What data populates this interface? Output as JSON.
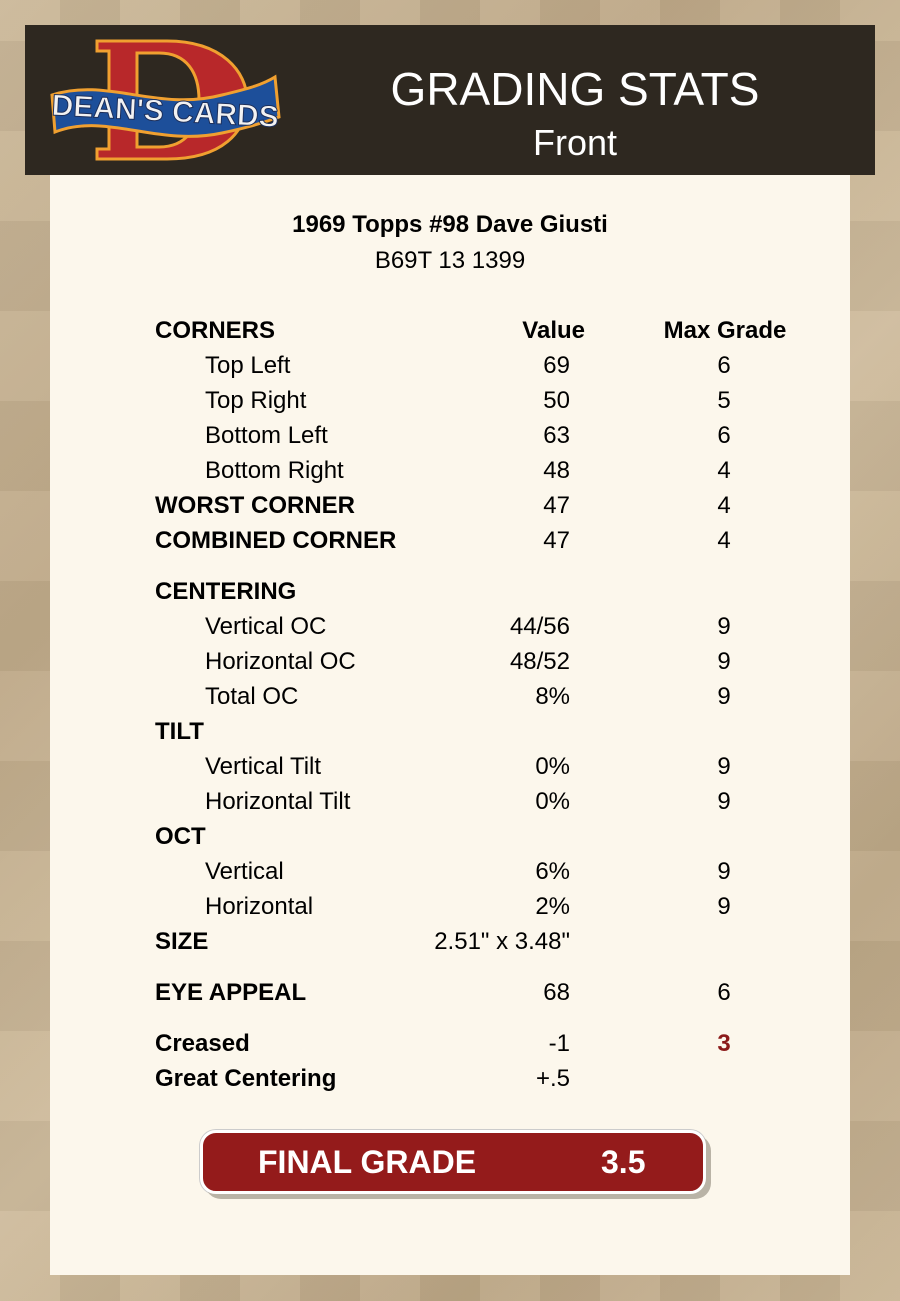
{
  "header": {
    "brand": "DEAN'S CARDS",
    "title": "GRADING STATS",
    "subtitle": "Front"
  },
  "card": {
    "title": "1969 Topps #98 Dave Giusti",
    "code": "B69T 13 1399"
  },
  "columns": {
    "value": "Value",
    "max": "Max Grade"
  },
  "sections": [
    {
      "rows": [
        {
          "label": "CORNERS",
          "type": "bold",
          "value": "",
          "max": ""
        },
        {
          "label": "Top Left",
          "type": "sub",
          "value": "69",
          "max": "6"
        },
        {
          "label": "Top Right",
          "type": "sub",
          "value": "50",
          "max": "5"
        },
        {
          "label": "Bottom Left",
          "type": "sub",
          "value": "63",
          "max": "6"
        },
        {
          "label": "Bottom Right",
          "type": "sub",
          "value": "48",
          "max": "4"
        },
        {
          "label": "WORST CORNER",
          "type": "bold",
          "value": "47",
          "max": "4"
        },
        {
          "label": "COMBINED CORNER",
          "type": "bold",
          "value": "47",
          "max": "4"
        }
      ]
    },
    {
      "rows": [
        {
          "label": "CENTERING",
          "type": "bold",
          "value": "",
          "max": ""
        },
        {
          "label": "Vertical OC",
          "type": "sub",
          "value": "44/56",
          "max": "9"
        },
        {
          "label": "Horizontal OC",
          "type": "sub",
          "value": "48/52",
          "max": "9"
        },
        {
          "label": "Total OC",
          "type": "sub",
          "value": "8%",
          "max": "9"
        },
        {
          "label": "TILT",
          "type": "bold",
          "value": "",
          "max": ""
        },
        {
          "label": "Vertical Tilt",
          "type": "sub",
          "value": "0%",
          "max": "9"
        },
        {
          "label": "Horizontal Tilt",
          "type": "sub",
          "value": "0%",
          "max": "9"
        },
        {
          "label": "OCT",
          "type": "bold",
          "value": "",
          "max": ""
        },
        {
          "label": "Vertical",
          "type": "sub",
          "value": "6%",
          "max": "9"
        },
        {
          "label": "Horizontal",
          "type": "sub",
          "value": "2%",
          "max": "9"
        },
        {
          "label": "SIZE",
          "type": "bold",
          "value": "2.51\" x 3.48\"",
          "max": ""
        }
      ]
    },
    {
      "rows": [
        {
          "label": "EYE APPEAL",
          "type": "bold",
          "value": "68",
          "max": "6"
        }
      ]
    },
    {
      "rows": [
        {
          "label": "Creased",
          "type": "bold",
          "value": "-1",
          "max": "3",
          "max_color": "#8b1a1a"
        },
        {
          "label": "Great Centering",
          "type": "bold",
          "value": "+.5",
          "max": ""
        }
      ]
    }
  ],
  "final": {
    "label": "FINAL GRADE",
    "value": "3.5",
    "color": "#941b1b"
  }
}
